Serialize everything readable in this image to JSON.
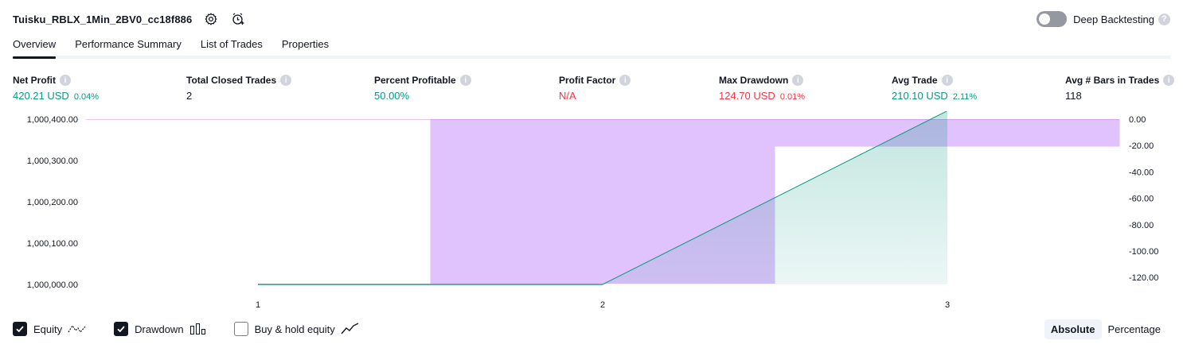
{
  "header": {
    "strategy_name": "Tuisku_RBLX_1Min_2BV0_cc18f886"
  },
  "deep_backtesting": {
    "label": "Deep Backtesting",
    "enabled": false,
    "help": "?"
  },
  "tabs": [
    {
      "label": "Overview",
      "active": true
    },
    {
      "label": "Performance Summary",
      "active": false
    },
    {
      "label": "List of Trades",
      "active": false
    },
    {
      "label": "Properties",
      "active": false
    }
  ],
  "metrics": {
    "net_profit": {
      "label": "Net Profit",
      "value": "420.21 USD",
      "sub": "0.04%"
    },
    "total_closed_trades": {
      "label": "Total Closed Trades",
      "value": "2"
    },
    "percent_profitable": {
      "label": "Percent Profitable",
      "value": "50.00%"
    },
    "profit_factor": {
      "label": "Profit Factor",
      "value": "N/A"
    },
    "max_drawdown": {
      "label": "Max Drawdown",
      "value": "124.70 USD",
      "sub": "0.01%"
    },
    "avg_trade": {
      "label": "Avg Trade",
      "value": "210.10 USD",
      "sub": "2.11%"
    },
    "avg_bars": {
      "label": "Avg # Bars in Trades",
      "value": "118"
    },
    "info_glyph": "i"
  },
  "chart_data": {
    "type": "area",
    "x_ticks": [
      "1",
      "2",
      "3"
    ],
    "left_axis": {
      "ticks": [
        "1,000,400.00",
        "1,000,300.00",
        "1,000,200.00",
        "1,000,100.00",
        "1,000,000.00"
      ],
      "ylim": [
        1000000,
        1000400
      ]
    },
    "right_axis": {
      "ticks": [
        "0.00",
        "-20.00",
        "-40.00",
        "-60.00",
        "-80.00",
        "-100.00",
        "-120.00"
      ],
      "ylim": [
        -124.7,
        0
      ]
    },
    "equity": {
      "name": "Equity",
      "x": [
        1,
        2,
        3
      ],
      "y": [
        1000000,
        1000000,
        1000420.21
      ]
    },
    "drawdown": {
      "name": "Drawdown",
      "bars": [
        {
          "x_from": 1.5,
          "x_to": 2.5,
          "value": -124.7
        },
        {
          "x_from": 2.5,
          "x_to": 3.5,
          "value": -20.8
        }
      ]
    },
    "colors": {
      "equity_line": "#089981",
      "drawdown": "#b266f8",
      "equity_fill": "#089981",
      "baseline": "#787b86"
    }
  },
  "legend": [
    {
      "label": "Equity",
      "checked": true,
      "icon": "equity-line-icon"
    },
    {
      "label": "Drawdown",
      "checked": true,
      "icon": "drawdown-bars-icon"
    },
    {
      "label": "Buy & hold equity",
      "checked": false,
      "icon": "buy-hold-line-icon"
    }
  ],
  "modes": [
    {
      "label": "Absolute",
      "active": true
    },
    {
      "label": "Percentage",
      "active": false
    }
  ]
}
